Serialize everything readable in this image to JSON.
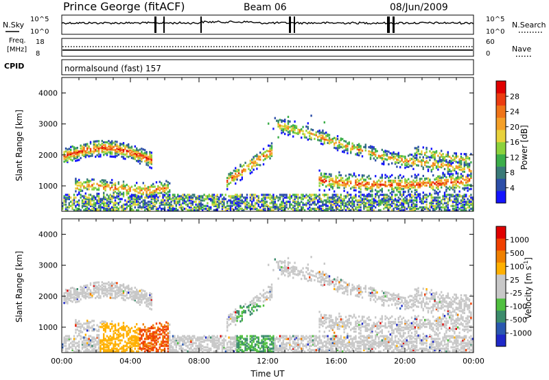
{
  "header": {
    "station": "Prince George (fitACF)",
    "beam": "Beam 06",
    "date": "08/Jun/2009"
  },
  "noise_panel": {
    "left_label": "N.Sky",
    "right_label": "N.Search",
    "left_ticks": [
      "10^5",
      "10^0"
    ],
    "right_ticks": [
      "10^5",
      "10^0"
    ]
  },
  "freq_panel": {
    "left_label_line1": "Freq.",
    "left_label_line2": "[MHz]",
    "right_label": "Nave",
    "left_ticks": [
      "18",
      "8"
    ],
    "right_ticks": [
      "60",
      "0"
    ]
  },
  "cpid": {
    "label": "CPID",
    "value": "normalsound (fast) 157"
  },
  "chart_data": [
    {
      "type": "heatmap",
      "title": "",
      "xlabel": "",
      "ylabel": "Slant Range [km]",
      "x_range_hours": [
        0,
        24
      ],
      "ylim": [
        180,
        4500
      ],
      "y_ticks": [
        1000,
        2000,
        3000,
        4000
      ],
      "colorbar": {
        "label": "Power [dB]",
        "ticks": [
          "28",
          "24",
          "20",
          "16",
          "12",
          "8",
          "4"
        ],
        "colors": [
          "#1414ff",
          "#2c4ea8",
          "#3a7a78",
          "#3cae4a",
          "#8cd23c",
          "#e8d23c",
          "#f4a028",
          "#f07418",
          "#ec3c10",
          "#e00000"
        ]
      }
    },
    {
      "type": "heatmap",
      "title": "",
      "xlabel": "Time UT",
      "ylabel": "Slant Range [km]",
      "x_range_hours": [
        0,
        24
      ],
      "x_ticks": [
        "00:00",
        "04:00",
        "08:00",
        "12:00",
        "16:00",
        "20:00",
        "00:00"
      ],
      "ylim": [
        180,
        4500
      ],
      "y_ticks": [
        1000,
        2000,
        3000,
        4000
      ],
      "colorbar": {
        "label": "Velocity [m s",
        "label_sup": "-1",
        "label_end": "]",
        "ticks": [
          "1000",
          "500",
          "100",
          "25",
          "-25",
          "-100",
          "-500",
          "-1000"
        ],
        "colors": [
          "#1e28c8",
          "#2a58b0",
          "#3c8c6c",
          "#50c040",
          "#c8c8c8",
          "#c8c8c8",
          "#ffb000",
          "#f08000",
          "#f04000",
          "#e00000"
        ]
      }
    }
  ]
}
